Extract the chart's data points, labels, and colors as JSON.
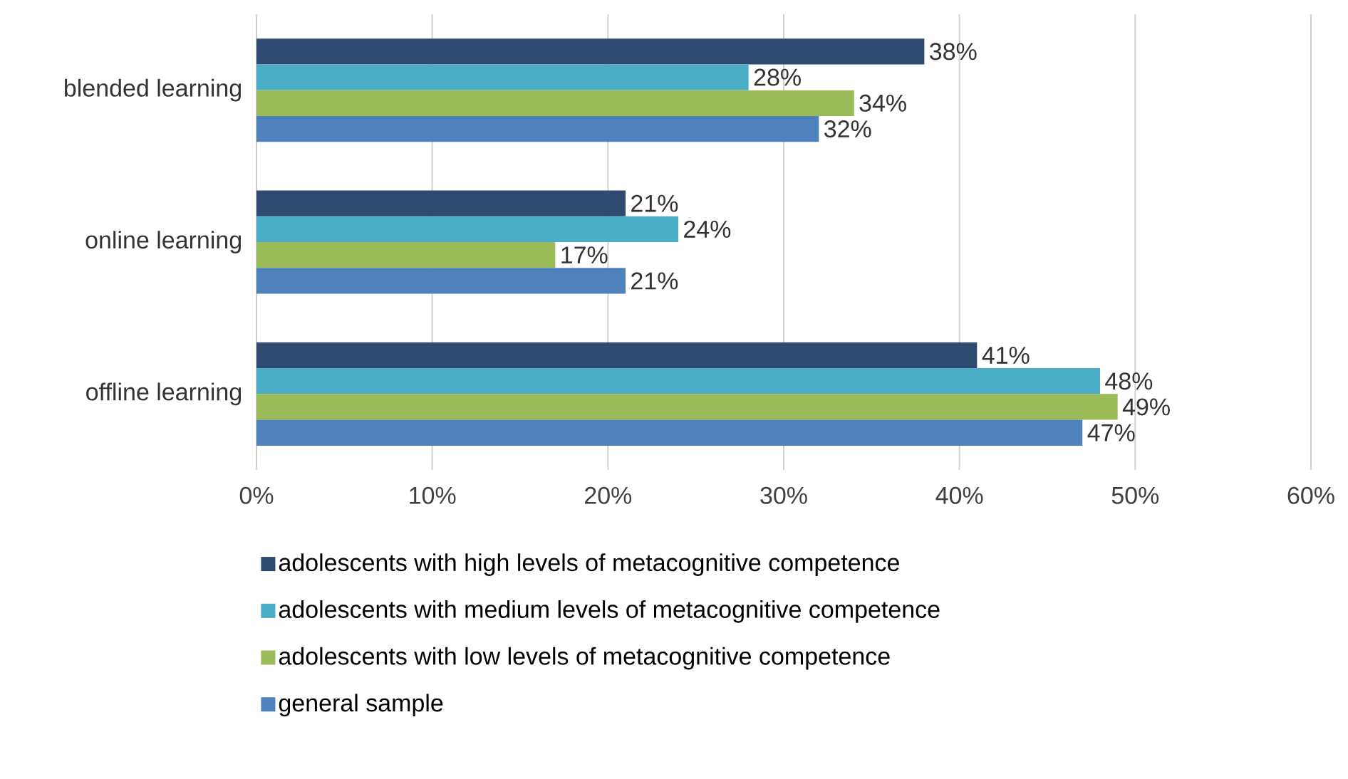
{
  "chart_data": {
    "type": "bar",
    "orientation": "horizontal",
    "categories": [
      "blended learning",
      "online learning",
      "offline learning"
    ],
    "series": [
      {
        "name": "adolescents with high levels of metacognitive competence",
        "color": "#2e4a6e",
        "values": [
          38,
          21,
          41
        ],
        "value_labels": [
          "38%",
          "21%",
          "41%"
        ]
      },
      {
        "name": "adolescents with medium levels of metacognitive competence",
        "color": "#4bacc6",
        "values": [
          28,
          24,
          48
        ],
        "value_labels": [
          "28%",
          "24%",
          "48%"
        ]
      },
      {
        "name": "adolescents with low levels of metacognitive competence",
        "color": "#9bbb59",
        "values": [
          34,
          17,
          49
        ],
        "value_labels": [
          "34%",
          "17%",
          "49%"
        ]
      },
      {
        "name": "general sample",
        "color": "#4f81bd",
        "values": [
          32,
          21,
          47
        ],
        "value_labels": [
          "32%",
          "21%",
          "47%"
        ]
      }
    ],
    "xlim": [
      0,
      60
    ],
    "xticks": [
      {
        "value": 0,
        "label": "0%"
      },
      {
        "value": 10,
        "label": "10%"
      },
      {
        "value": 20,
        "label": "20%"
      },
      {
        "value": 30,
        "label": "30%"
      },
      {
        "value": 40,
        "label": "40%"
      },
      {
        "value": 50,
        "label": "50%"
      },
      {
        "value": 60,
        "label": "60%"
      }
    ],
    "grid": "x",
    "legend": "bottom"
  }
}
